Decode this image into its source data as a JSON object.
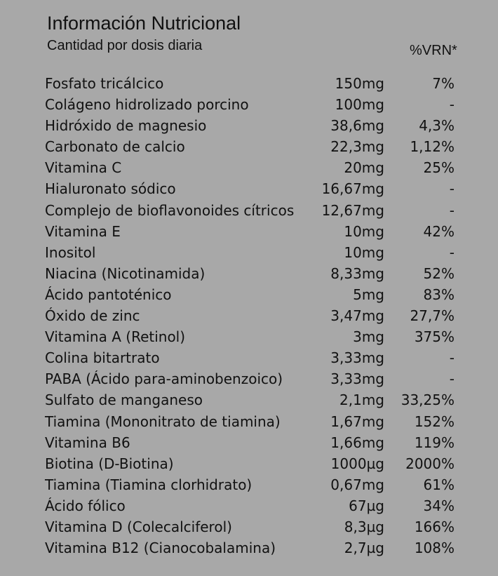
{
  "header": {
    "title": "Información Nutricional",
    "subtitle": "Cantidad por dosis diaria",
    "vrn_column": "%VRN*"
  },
  "table": {
    "rows": [
      [
        "Fosfato tricálcico",
        "150mg",
        "7%"
      ],
      [
        "Colágeno hidrolizado porcino",
        "100mg",
        "-"
      ],
      [
        "Hidróxido de magnesio",
        "38,6mg",
        "4,3%"
      ],
      [
        "Carbonato de calcio",
        "22,3mg",
        "1,12%"
      ],
      [
        "Vitamina C",
        "20mg",
        "25%"
      ],
      [
        "Hialuronato sódico",
        "16,67mg",
        "-"
      ],
      [
        "Complejo de bioflavonoides cítricos",
        "12,67mg",
        "-"
      ],
      [
        "Vitamina E",
        "10mg",
        "42%"
      ],
      [
        "Inositol",
        "10mg",
        "-"
      ],
      [
        "Niacina (Nicotinamida)",
        "8,33mg",
        "52%"
      ],
      [
        "Ácido pantoténico",
        "5mg",
        "83%"
      ],
      [
        "Óxido de zinc",
        "3,47mg",
        "27,7%"
      ],
      [
        "Vitamina A (Retinol)",
        "3mg",
        "375%"
      ],
      [
        "Colina bitartrato",
        "3,33mg",
        "-"
      ],
      [
        "PABA (Ácido para-aminobenzoico)",
        "3,33mg",
        "-"
      ],
      [
        "Sulfato de manganeso",
        "2,1mg",
        "33,25%"
      ],
      [
        "Tiamina (Mononitrato de tiamina)",
        "1,67mg",
        "152%"
      ],
      [
        "Vitamina B6",
        "1,66mg",
        "119%"
      ],
      [
        "Biotina (D-Biotina)",
        "1000µg",
        "2000%"
      ],
      [
        "Tiamina (Tiamina clorhidrato)",
        "0,67mg",
        "61%"
      ],
      [
        "Ácido fólico",
        "67µg",
        "34%"
      ],
      [
        "Vitamina D (Colecalciferol)",
        "8,3µg",
        "166%"
      ],
      [
        "Vitamina B12 (Cianocobalamina)",
        "2,7µg",
        "108%"
      ]
    ]
  }
}
